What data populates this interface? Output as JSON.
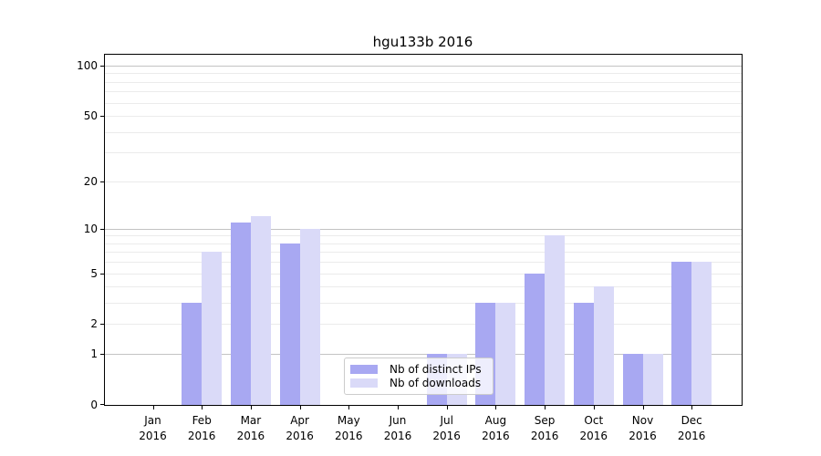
{
  "chart_data": {
    "type": "bar",
    "title": "hgu133b 2016",
    "months": [
      "Jan",
      "Feb",
      "Mar",
      "Apr",
      "May",
      "Jun",
      "Jul",
      "Aug",
      "Sep",
      "Oct",
      "Nov",
      "Dec"
    ],
    "year": "2016",
    "series": [
      {
        "name": "Nb of distinct IPs",
        "color": "#a8a8f2",
        "values": [
          0,
          3,
          11,
          8,
          0,
          0,
          1,
          3,
          5,
          3,
          1,
          6
        ]
      },
      {
        "name": "Nb of downloads",
        "color": "#dadaf8",
        "values": [
          0,
          7,
          12,
          10,
          0,
          0,
          1,
          3,
          9,
          4,
          1,
          6
        ]
      }
    ],
    "y_scale": "log1p",
    "y_tick_labels": [
      0,
      1,
      2,
      5,
      10,
      20,
      50,
      100
    ],
    "y_major_grid": [
      1,
      10,
      100
    ],
    "y_minor_grid": [
      2,
      3,
      4,
      5,
      6,
      7,
      8,
      9,
      20,
      30,
      40,
      50,
      60,
      70,
      80,
      90
    ],
    "ylim": [
      0,
      115
    ],
    "grid": "on",
    "legend_location": "lower center, inside plot",
    "colors": {
      "spine": "#000000",
      "major_grid": "#c3c3c3",
      "minor_grid": "#ebebeb",
      "legend_border": "#cccccc"
    }
  }
}
